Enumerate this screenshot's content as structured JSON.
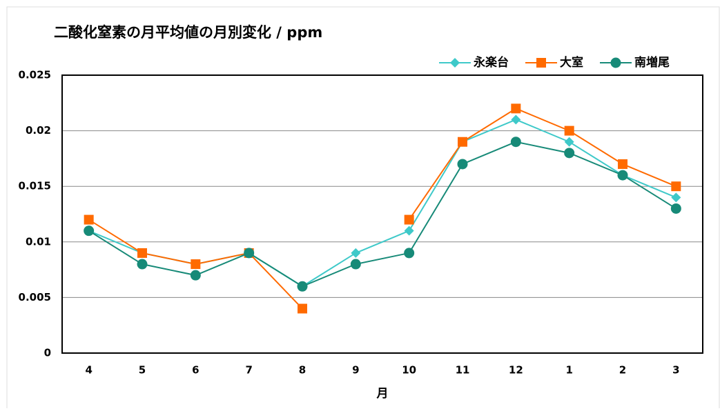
{
  "chart_data": {
    "type": "line",
    "title": "二酸化窒素の月平均値の月別変化 / ppm",
    "x_label": "月",
    "categories": [
      "4",
      "5",
      "6",
      "7",
      "8",
      "9",
      "10",
      "11",
      "12",
      "1",
      "2",
      "3"
    ],
    "series": [
      {
        "name": "永楽台",
        "color": "#3ec9c9",
        "marker": "diamond",
        "values": [
          0.011,
          0.009,
          0.008,
          0.009,
          0.006,
          0.009,
          0.011,
          0.019,
          0.021,
          0.019,
          0.016,
          0.014
        ]
      },
      {
        "name": "大室",
        "color": "#ff6a00",
        "marker": "square",
        "values": [
          0.012,
          0.009,
          0.008,
          0.009,
          0.004,
          null,
          0.012,
          0.019,
          0.022,
          0.02,
          0.017,
          0.015
        ]
      },
      {
        "name": "南増尾",
        "color": "#178a78",
        "marker": "circle",
        "values": [
          0.011,
          0.008,
          0.007,
          0.009,
          0.006,
          0.008,
          0.009,
          0.017,
          0.019,
          0.018,
          0.016,
          0.013
        ]
      }
    ],
    "ylim": [
      0,
      0.025
    ],
    "yticks": [
      0,
      0.005,
      0.01,
      0.015,
      0.02,
      0.025
    ],
    "grid": true,
    "legend": "top-right"
  }
}
